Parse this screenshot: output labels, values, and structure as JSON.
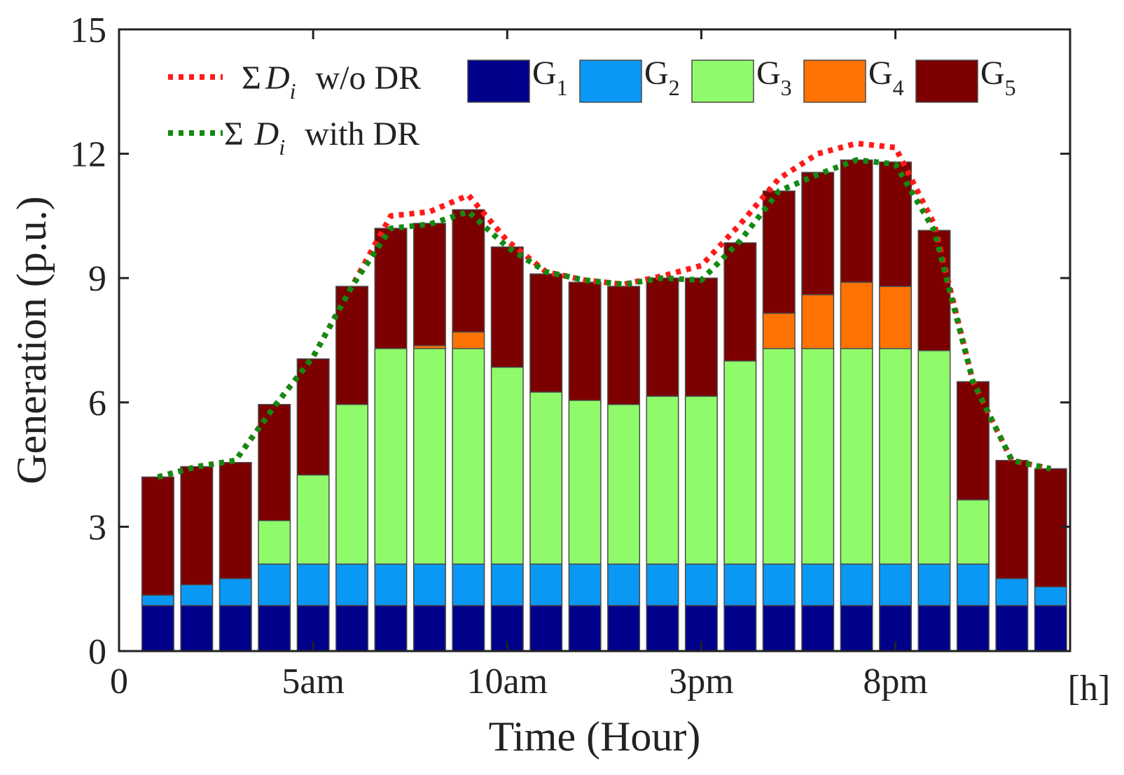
{
  "chart_data": {
    "type": "bar",
    "stacked": true,
    "title": "",
    "xlabel": "Time (Hour)",
    "ylabel": "Generation (p.u.)",
    "ylim": [
      0,
      15
    ],
    "yticks": [
      0,
      3,
      6,
      9,
      12,
      15
    ],
    "xlim": [
      0,
      24.5
    ],
    "xticks": [
      {
        "value": 0,
        "label": "0"
      },
      {
        "value": 5,
        "label": "5am"
      },
      {
        "value": 10,
        "label": "10am"
      },
      {
        "value": 15,
        "label": "3pm"
      },
      {
        "value": 20,
        "label": "8pm"
      }
    ],
    "x_unit_label": "[h]",
    "categories": [
      1,
      2,
      3,
      4,
      5,
      6,
      7,
      8,
      9,
      10,
      11,
      12,
      13,
      14,
      15,
      16,
      17,
      18,
      19,
      20,
      21,
      22,
      23,
      24
    ],
    "series": [
      {
        "name": "G",
        "sub": "1",
        "color": "#00008b",
        "values": [
          1.1,
          1.1,
          1.1,
          1.1,
          1.1,
          1.1,
          1.1,
          1.1,
          1.1,
          1.1,
          1.1,
          1.1,
          1.1,
          1.1,
          1.1,
          1.1,
          1.1,
          1.1,
          1.1,
          1.1,
          1.1,
          1.1,
          1.1,
          1.1
        ]
      },
      {
        "name": "G",
        "sub": "2",
        "color": "#0a98f5",
        "values": [
          0.25,
          0.5,
          0.65,
          1.0,
          1.0,
          1.0,
          1.0,
          1.0,
          1.0,
          1.0,
          1.0,
          1.0,
          1.0,
          1.0,
          1.0,
          1.0,
          1.0,
          1.0,
          1.0,
          1.0,
          1.0,
          1.0,
          0.65,
          0.45
        ]
      },
      {
        "name": "G",
        "sub": "3",
        "color": "#90fb6a",
        "values": [
          0,
          0,
          0,
          1.05,
          2.15,
          3.85,
          5.2,
          5.2,
          5.2,
          4.75,
          4.15,
          3.95,
          3.85,
          4.05,
          4.05,
          4.9,
          5.2,
          5.2,
          5.2,
          5.2,
          5.15,
          1.55,
          0,
          0
        ]
      },
      {
        "name": "G",
        "sub": "4",
        "color": "#ff7304",
        "values": [
          0,
          0,
          0,
          0,
          0,
          0,
          0,
          0.07,
          0.4,
          0,
          0,
          0,
          0,
          0,
          0,
          0,
          0.85,
          1.3,
          1.6,
          1.5,
          0,
          0,
          0,
          0
        ]
      },
      {
        "name": "G",
        "sub": "5",
        "color": "#7d0000",
        "values": [
          2.85,
          2.85,
          2.8,
          2.8,
          2.8,
          2.85,
          2.9,
          2.95,
          2.95,
          2.9,
          2.85,
          2.85,
          2.85,
          2.85,
          2.85,
          2.85,
          2.95,
          2.95,
          2.95,
          3.0,
          2.9,
          2.85,
          2.85,
          2.85
        ]
      }
    ],
    "lines": [
      {
        "symbol": "Σ",
        "var": "D",
        "sub": "i",
        "text": "w/o DR",
        "color": "#ff1a1a",
        "x": [
          1,
          2,
          3,
          4,
          5,
          6,
          7,
          8,
          9,
          10,
          11,
          12,
          13,
          14,
          15,
          16,
          17,
          18,
          19,
          20,
          21,
          22,
          23,
          24
        ],
        "values": [
          4.2,
          4.45,
          4.6,
          5.9,
          7.1,
          8.8,
          10.5,
          10.6,
          11.0,
          9.9,
          9.15,
          8.95,
          8.85,
          9.05,
          9.3,
          10.3,
          11.4,
          12.0,
          12.25,
          12.15,
          10.3,
          6.5,
          4.6,
          4.4
        ]
      },
      {
        "symbol": "Σ",
        "var": "D",
        "sub": "i",
        "text": "with DR",
        "color": "#128a12",
        "x": [
          1,
          2,
          3,
          4,
          5,
          6,
          7,
          8,
          9,
          10,
          11,
          12,
          13,
          14,
          15,
          16,
          17,
          18,
          19,
          20,
          21,
          22,
          23,
          24
        ],
        "values": [
          4.2,
          4.45,
          4.6,
          5.9,
          7.1,
          8.8,
          10.2,
          10.3,
          10.6,
          9.75,
          9.15,
          8.95,
          8.85,
          9.0,
          8.95,
          9.9,
          11.1,
          11.5,
          11.85,
          11.75,
          10.15,
          6.5,
          4.6,
          4.4
        ]
      }
    ]
  }
}
